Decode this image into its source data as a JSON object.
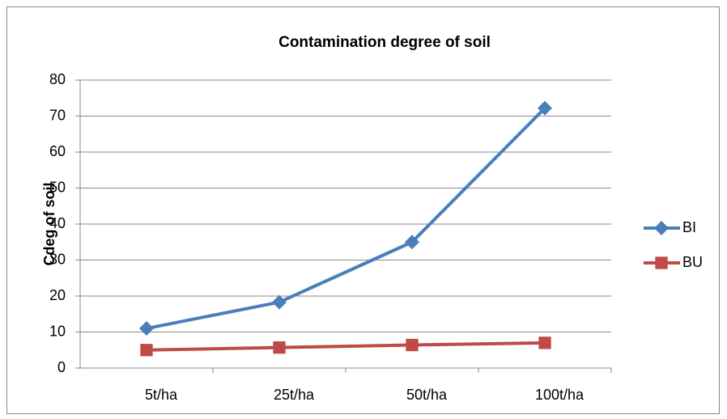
{
  "chart_data": {
    "type": "line",
    "title": "Contamination degree of soil",
    "y_label": "Cdeg of soil",
    "categories": [
      "5t/ha",
      "25t/ha",
      "50t/ha",
      "100t/ha"
    ],
    "series": [
      {
        "name": "BI",
        "color": "#4a7ebb",
        "values": [
          11,
          18.3,
          35,
          72.2
        ]
      },
      {
        "name": "BU",
        "color": "#be4b48",
        "values": [
          5,
          5.7,
          6.4,
          7
        ]
      }
    ],
    "ylim": [
      0,
      80
    ],
    "yticks": [
      0,
      10,
      20,
      30,
      40,
      50,
      60,
      70,
      80
    ],
    "grid": true,
    "legend": "right"
  }
}
